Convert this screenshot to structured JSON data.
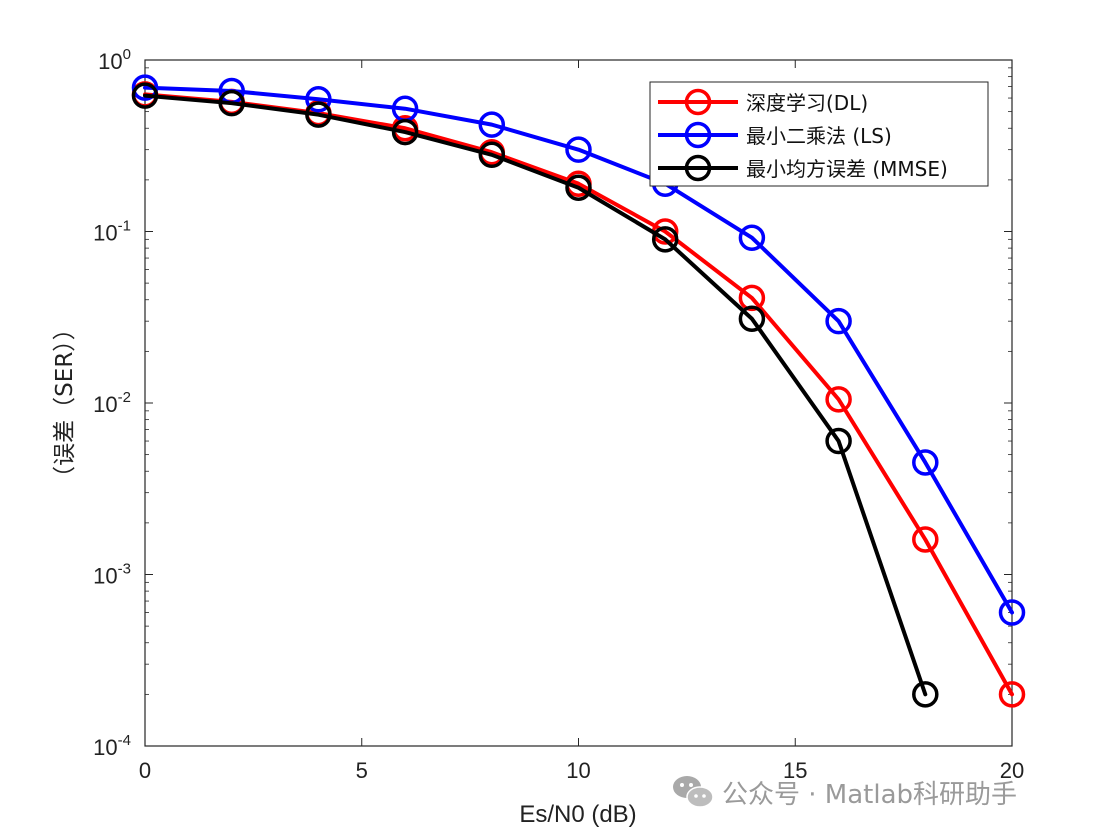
{
  "chart_data": {
    "type": "line",
    "title": "",
    "xlabel": "Es/N0 (dB)",
    "ylabel": "（误差（SER））",
    "xlim": [
      0,
      20
    ],
    "ylim": [
      0.0001,
      1
    ],
    "yscale": "log",
    "grid": false,
    "legend_position": "top-right",
    "x_ticks": [
      "0",
      "5",
      "10",
      "15",
      "20"
    ],
    "y_ticks": [
      {
        "base": "10",
        "exp": "0"
      },
      {
        "base": "10",
        "exp": "-1"
      },
      {
        "base": "10",
        "exp": "-2"
      },
      {
        "base": "10",
        "exp": "-3"
      },
      {
        "base": "10",
        "exp": "-4"
      }
    ],
    "series": [
      {
        "name": "深度学习(DL)",
        "color": "#ff0000",
        "marker": "circle",
        "x": [
          0,
          2,
          4,
          6,
          8,
          10,
          12,
          14,
          16,
          18,
          20
        ],
        "y": [
          0.63,
          0.57,
          0.49,
          0.4,
          0.29,
          0.19,
          0.1,
          0.041,
          0.0105,
          0.0016,
          0.0002
        ]
      },
      {
        "name": "最小二乘法 (LS)",
        "color": "#0000ff",
        "marker": "circle",
        "x": [
          0,
          2,
          4,
          6,
          8,
          10,
          12,
          14,
          16,
          18,
          20
        ],
        "y": [
          0.69,
          0.66,
          0.59,
          0.52,
          0.42,
          0.3,
          0.19,
          0.092,
          0.03,
          0.0045,
          0.0006
        ]
      },
      {
        "name": "最小均方误差 (MMSE)",
        "color": "#000000",
        "marker": "circle",
        "x": [
          0,
          2,
          4,
          6,
          8,
          10,
          12,
          14,
          16,
          18
        ],
        "y": [
          0.62,
          0.56,
          0.48,
          0.38,
          0.28,
          0.18,
          0.09,
          0.031,
          0.006,
          0.0002
        ]
      }
    ]
  },
  "watermark": {
    "text": "公众号 · Matlab科研助手",
    "icon": "wechat-icon"
  }
}
